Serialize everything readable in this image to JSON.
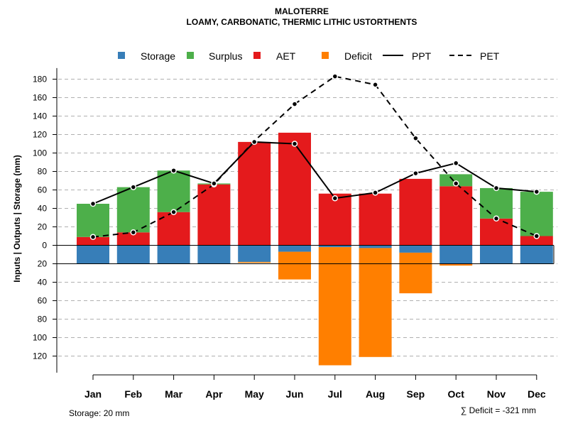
{
  "chart_data": {
    "type": "bar",
    "title": "MALOTERRE",
    "subtitle": "LOAMY, CARBONATIC, THERMIC LITHIC USTORTHENTS",
    "ylabel": "Inputs | Outputs | Storage    (mm)",
    "categories": [
      "Jan",
      "Feb",
      "Mar",
      "Apr",
      "May",
      "Jun",
      "Jul",
      "Aug",
      "Sep",
      "Oct",
      "Nov",
      "Dec"
    ],
    "ylim": [
      -138,
      192
    ],
    "yticks": [
      180,
      160,
      140,
      120,
      100,
      80,
      60,
      40,
      20,
      0,
      -20,
      -40,
      -60,
      -80,
      -100,
      -120
    ],
    "ytick_labels": [
      "180",
      "160",
      "140",
      "120",
      "100",
      "80",
      "60",
      "40",
      "20",
      "0",
      "20",
      "40",
      "60",
      "80",
      "100",
      "120"
    ],
    "legend": {
      "storage": "Storage",
      "surplus": "Surplus",
      "aet": "AET",
      "deficit": "Deficit",
      "ppt": "PPT",
      "pet": "PET"
    },
    "colors": {
      "storage": "#377EB8",
      "surplus": "#4DAF4A",
      "aet": "#E41A1C",
      "deficit": "#FF7F00",
      "grid": "#b0b0b0"
    },
    "series": [
      {
        "name": "AET",
        "values": [
          9,
          14,
          36,
          66,
          112,
          122,
          56,
          56,
          72,
          64,
          29,
          10
        ]
      },
      {
        "name": "Surplus",
        "values": [
          36,
          49,
          45,
          1,
          0,
          0,
          0,
          0,
          0,
          13,
          33,
          48
        ]
      },
      {
        "name": "Storage",
        "values": [
          20,
          20,
          20,
          20,
          18,
          7,
          2,
          3,
          8,
          20,
          20,
          20
        ]
      },
      {
        "name": "Deficit",
        "values": [
          0,
          0,
          0,
          0,
          1,
          30,
          128,
          118,
          44,
          2,
          0,
          0
        ]
      },
      {
        "name": "PPT",
        "values": [
          45,
          63,
          81,
          67,
          112,
          110,
          51,
          57,
          78,
          89,
          62,
          58
        ]
      },
      {
        "name": "PET",
        "values": [
          9,
          14,
          36,
          66,
          113,
          153,
          183,
          174,
          116,
          67,
          29,
          10
        ]
      }
    ],
    "deficit_top": [
      0,
      0,
      0,
      0,
      -18,
      -7,
      -2,
      -3,
      -8,
      -20,
      0,
      0
    ],
    "storage_line": -20
  },
  "footer": {
    "storage_note": "Storage: 20 mm",
    "deficit_note": "∑ Deficit = -321 mm"
  }
}
